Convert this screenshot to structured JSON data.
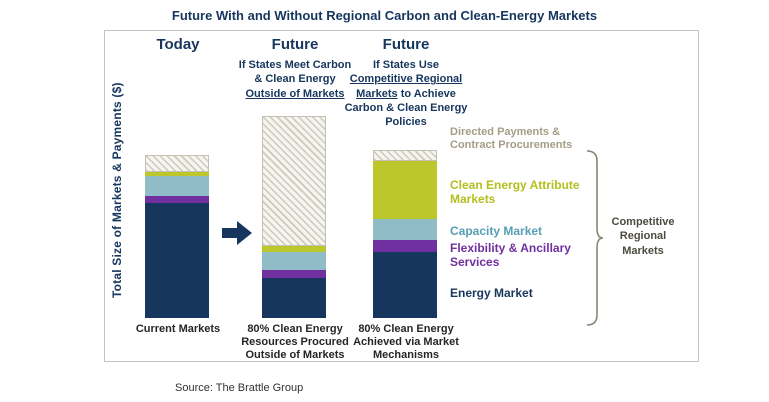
{
  "title": "Future With and Without Regional Carbon and Clean-Energy Markets",
  "y_axis_label": "Total Size of Markets & Payments ($)",
  "source": "Source: The Brattle Group",
  "bracket_label": "Competitive Regional Markets",
  "columns": [
    {
      "header": "Today",
      "x_label": "Current Markets"
    },
    {
      "header": "Future",
      "sub_line1": "If States Meet Carbon",
      "sub_line2": "& Clean Energy",
      "sub_line3_u": "Outside of Markets",
      "x_label": "80% Clean Energy Resources Procured Outside of Markets"
    },
    {
      "header": "Future",
      "sub_line1": "If States Use",
      "sub_line2_u": "Competitive Regional",
      "sub_line3_u": "Markets",
      "sub_line3_rest": " to Achieve",
      "sub_line4": "Carbon & Clean Energy",
      "sub_line5": "Policies",
      "x_label": "80% Clean Energy Achieved via Market Mechanisms"
    }
  ],
  "legend": {
    "directed": "Directed Payments & Contract Procurements",
    "clean": "Clean Energy Attribute Markets",
    "capacity": "Capacity Market",
    "flexibility": "Flexibility & Ancillary Services",
    "energy": "Energy Market"
  },
  "colors": {
    "title": "#17365D",
    "energy_market": "#17365D",
    "flexibility_ancillary": "#7030A0",
    "capacity_market": "#8FBCC6",
    "clean_energy_attribute": "#BCC72C",
    "directed_payments_label": "#A39E85",
    "bracket": "#8A8574"
  },
  "chart_data": {
    "type": "bar",
    "stacked": true,
    "title": "Future With and Without Regional Carbon and Clean-Energy Markets",
    "ylabel": "Total Size of Markets & Payments ($)",
    "y_axis_ticks": "none (unlabeled relative $ scale)",
    "legend_position": "right of third bar",
    "categories": [
      "Current Markets",
      "80% Clean Energy Resources Procured Outside of Markets",
      "80% Clean Energy Achieved via Market Mechanisms"
    ],
    "series": [
      {
        "key": "energy",
        "name": "Energy Market",
        "color": "#17365D",
        "values": [
          70,
          24,
          40
        ]
      },
      {
        "key": "flexibility",
        "name": "Flexibility & Ancillary Services",
        "color": "#7030A0",
        "values": [
          4,
          5,
          7
        ]
      },
      {
        "key": "capacity",
        "name": "Capacity Market",
        "color": "#8FBCC6",
        "values": [
          12,
          11,
          13
        ]
      },
      {
        "key": "clean",
        "name": "Clean Energy Attribute Markets",
        "color": "#BCC72C",
        "values": [
          2.5,
          3.5,
          35
        ]
      },
      {
        "key": "directed",
        "name": "Directed Payments & Contract Procurements",
        "color": "#F5F4EF",
        "pattern": "hatch",
        "values": [
          10,
          79,
          7
        ]
      }
    ],
    "annotations": [
      "arrow from Today bar to middle Future bar",
      "bracket grouping Energy, Flexibility, Capacity and Clean Energy segments labeled Competitive Regional Markets"
    ]
  }
}
